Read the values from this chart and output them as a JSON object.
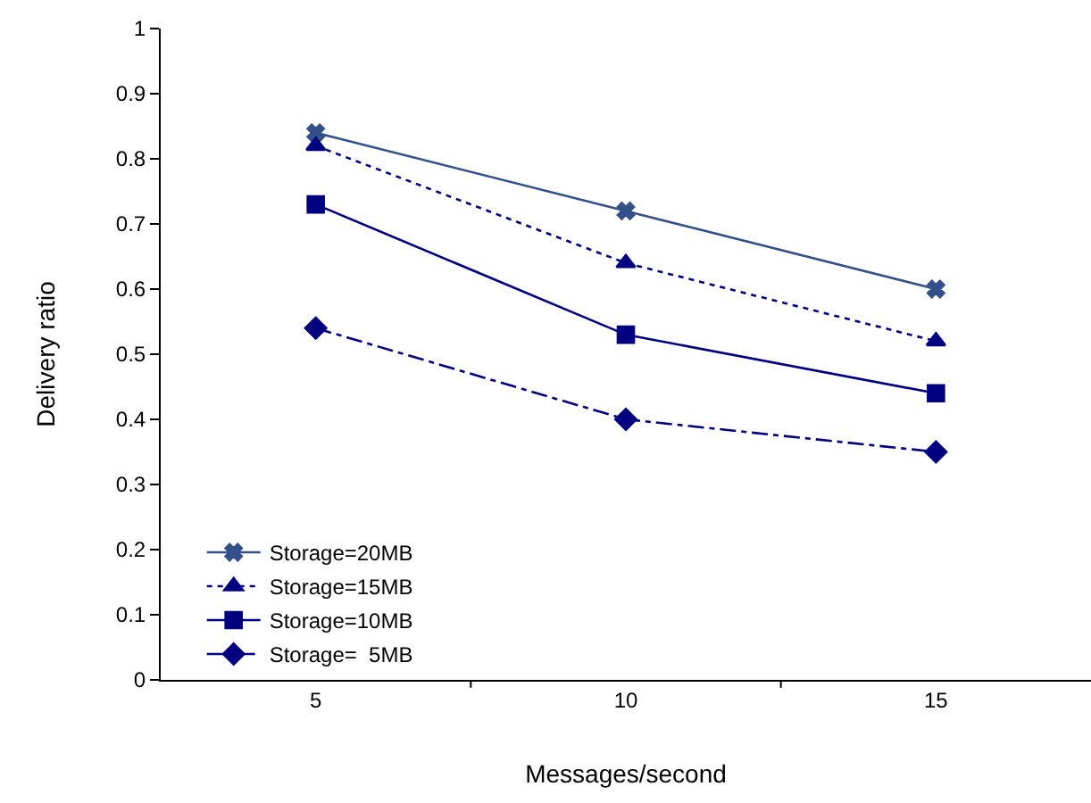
{
  "chart_data": {
    "type": "line",
    "xlabel": "Messages/second",
    "ylabel": "Delivery ratio",
    "categories": [
      "5",
      "10",
      "15"
    ],
    "series": [
      {
        "name": "Storage=20MB",
        "color": "#33508a",
        "values": [
          0.84,
          0.72,
          0.6
        ],
        "marker": "cross",
        "line_style": "solid"
      },
      {
        "name": "Storage=15MB",
        "color": "#000080",
        "values": [
          0.82,
          0.64,
          0.52
        ],
        "marker": "triangle",
        "line_style": "dotted"
      },
      {
        "name": "Storage=10MB",
        "color": "#000080",
        "values": [
          0.73,
          0.53,
          0.44
        ],
        "marker": "square",
        "line_style": "solid"
      },
      {
        "name": "Storage=  5MB",
        "color": "#000080",
        "values": [
          0.54,
          0.4,
          0.35
        ],
        "marker": "diamond",
        "line_style": "dashed"
      }
    ],
    "ylim": [
      0,
      1
    ],
    "yticks": [
      0,
      0.1,
      0.2,
      0.3,
      0.4,
      0.5,
      0.6,
      0.7,
      0.8,
      0.9,
      1
    ],
    "grid": false,
    "legend": "bottom left"
  }
}
